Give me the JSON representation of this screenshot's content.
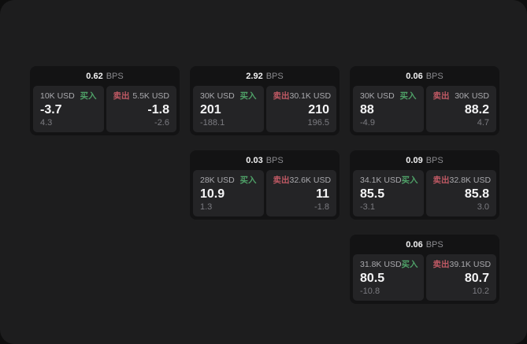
{
  "page": {
    "bps_unit": "BPS",
    "colors": {
      "backdrop": "#0e0e0e",
      "page_background": "#1d1d1e",
      "card_background": "#131314",
      "panel_background": "#242426",
      "buy_green": "#4fa168",
      "sell_red": "#bf5964",
      "primary_text": "#f5f5f6",
      "muted_text": "#8b8b8f"
    }
  },
  "cards": [
    {
      "bps_value": "0.62",
      "buy": {
        "size": "10K USD",
        "action": "买入",
        "main": "-3.7",
        "sub": "4.3"
      },
      "sell": {
        "action": "卖出",
        "size": "5.5K USD",
        "main": "-1.8",
        "sub": "-2.6"
      }
    },
    {
      "bps_value": "2.92",
      "buy": {
        "size": "30K USD",
        "action": "买入",
        "main": "201",
        "sub": "-188.1"
      },
      "sell": {
        "action": "卖出",
        "size": "30.1K USD",
        "main": "210",
        "sub": "196.5"
      }
    },
    {
      "bps_value": "0.06",
      "buy": {
        "size": "30K USD",
        "action": "买入",
        "main": "88",
        "sub": "-4.9"
      },
      "sell": {
        "action": "卖出",
        "size": "30K USD",
        "main": "88.2",
        "sub": "4.7"
      }
    },
    {
      "bps_value": "0.03",
      "buy": {
        "size": "28K USD",
        "action": "买入",
        "main": "10.9",
        "sub": "1.3"
      },
      "sell": {
        "action": "卖出",
        "size": "32.6K USD",
        "main": "11",
        "sub": "-1.8"
      }
    },
    {
      "bps_value": "0.09",
      "buy": {
        "size": "34.1K USD",
        "action": "买入",
        "main": "85.5",
        "sub": "-3.1"
      },
      "sell": {
        "action": "卖出",
        "size": "32.8K USD",
        "main": "85.8",
        "sub": "3.0"
      }
    },
    {
      "bps_value": "0.06",
      "buy": {
        "size": "31.8K USD",
        "action": "买入",
        "main": "80.5",
        "sub": "-10.8"
      },
      "sell": {
        "action": "卖出",
        "size": "39.1K USD",
        "main": "80.7",
        "sub": "10.2"
      }
    }
  ]
}
